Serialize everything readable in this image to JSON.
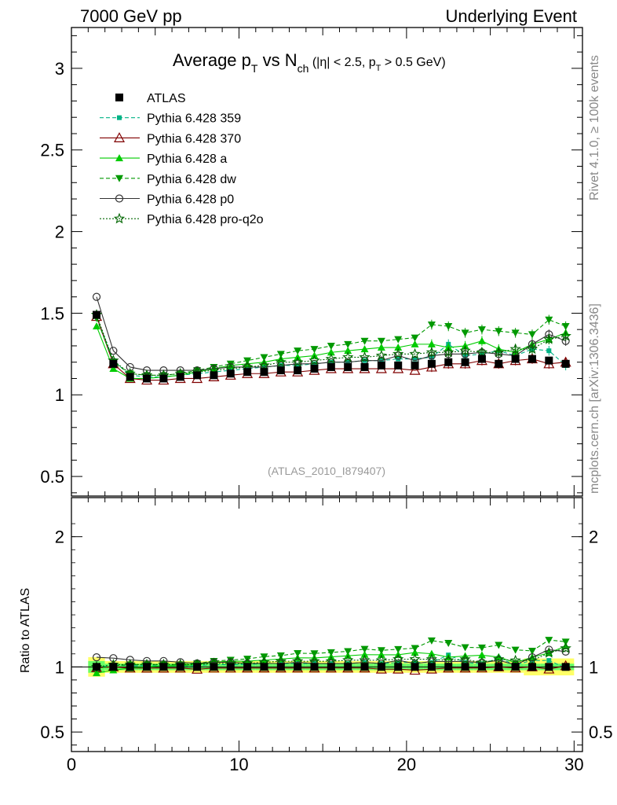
{
  "header": {
    "left": "7000 GeV pp",
    "right": "Underlying Event"
  },
  "title": {
    "prefix": "Average p",
    "sub1": "T",
    "mid": " vs N",
    "sub2": "ch",
    "cut_a": " (|η| < 2.5, p",
    "cut_sub": "T",
    "cut_b": " > 0.5 GeV)"
  },
  "side_labels": {
    "rivet": "Rivet 4.1.0, ≥ 100k events",
    "mcplots": "mcplots.cern.ch [arXiv:1306.3436]"
  },
  "analysis_tag": "(ATLAS_2010_I879407)",
  "ratio_ylabel": "Ratio to ATLAS",
  "colors": {
    "atlas": "#000000",
    "p359": "#00b386",
    "p370": "#800000",
    "pa": "#00cc00",
    "pdw": "#009900",
    "pp0": "#333333",
    "pq2o": "#006600",
    "band_outer": "#ffff66",
    "band_inner": "#66ff66"
  },
  "chart_data": {
    "type": "scatter",
    "x": [
      1.5,
      2.5,
      3.5,
      4.5,
      5.5,
      6.5,
      7.5,
      8.5,
      9.5,
      10.5,
      11.5,
      12.5,
      13.5,
      14.5,
      15.5,
      16.5,
      17.5,
      18.5,
      19.5,
      20.5,
      21.5,
      22.5,
      23.5,
      24.5,
      25.5,
      26.5,
      27.5,
      28.5,
      29.5
    ],
    "xlim": [
      0,
      30.5
    ],
    "xticks": [
      0,
      10,
      20,
      30
    ],
    "main": {
      "ylim": [
        0.38,
        3.25
      ],
      "yticks": [
        0.5,
        1,
        1.5,
        2,
        2.5,
        3
      ],
      "ytick_labels": [
        "0.5",
        "1",
        "1.5",
        "2",
        "2.5",
        "3"
      ]
    },
    "ratio": {
      "ylabel": "Ratio to ATLAS",
      "ylim": [
        0.35,
        2.3
      ],
      "yticks": [
        0.5,
        1,
        2
      ],
      "ytick_labels": [
        "0.5",
        "1",
        "2"
      ]
    },
    "series": [
      {
        "name": "ATLAS",
        "key": "atlas",
        "marker": "square",
        "line": "none",
        "values": [
          1.49,
          1.19,
          1.11,
          1.1,
          1.1,
          1.11,
          1.12,
          1.12,
          1.13,
          1.14,
          1.14,
          1.15,
          1.15,
          1.16,
          1.17,
          1.17,
          1.17,
          1.18,
          1.18,
          1.18,
          1.19,
          1.2,
          1.2,
          1.22,
          1.19,
          1.22,
          1.22,
          1.21,
          1.19
        ]
      },
      {
        "name": "Pythia 6.428 359",
        "key": "p359",
        "marker": "square-small",
        "line": "dashed",
        "values": [
          1.48,
          1.21,
          1.12,
          1.11,
          1.11,
          1.12,
          1.13,
          1.14,
          1.15,
          1.16,
          1.17,
          1.18,
          1.18,
          1.19,
          1.2,
          1.2,
          1.21,
          1.21,
          1.22,
          1.22,
          1.23,
          1.31,
          1.24,
          1.25,
          1.27,
          1.24,
          1.28,
          1.27,
          1.18
        ]
      },
      {
        "name": "Pythia 6.428 370",
        "key": "p370",
        "marker": "triangle-open",
        "line": "solid",
        "values": [
          1.48,
          1.19,
          1.1,
          1.09,
          1.09,
          1.1,
          1.1,
          1.11,
          1.12,
          1.13,
          1.13,
          1.14,
          1.14,
          1.15,
          1.16,
          1.16,
          1.16,
          1.16,
          1.16,
          1.15,
          1.17,
          1.19,
          1.19,
          1.21,
          1.19,
          1.21,
          1.22,
          1.19,
          1.2
        ]
      },
      {
        "name": "Pythia 6.428 a",
        "key": "pa",
        "marker": "triangle-filled",
        "line": "solid",
        "values": [
          1.42,
          1.16,
          1.1,
          1.1,
          1.11,
          1.12,
          1.14,
          1.16,
          1.18,
          1.19,
          1.2,
          1.22,
          1.23,
          1.24,
          1.26,
          1.27,
          1.28,
          1.29,
          1.29,
          1.31,
          1.31,
          1.29,
          1.3,
          1.33,
          1.28,
          1.26,
          1.31,
          1.34,
          1.38
        ]
      },
      {
        "name": "Pythia 6.428 dw",
        "key": "pdw",
        "marker": "triangle-down",
        "line": "dashed",
        "values": [
          1.47,
          1.2,
          1.13,
          1.12,
          1.12,
          1.13,
          1.15,
          1.17,
          1.19,
          1.21,
          1.23,
          1.25,
          1.27,
          1.28,
          1.3,
          1.31,
          1.33,
          1.33,
          1.34,
          1.35,
          1.43,
          1.42,
          1.38,
          1.4,
          1.39,
          1.38,
          1.37,
          1.46,
          1.42
        ]
      },
      {
        "name": "Pythia 6.428 p0",
        "key": "pp0",
        "marker": "circle-open",
        "line": "solid",
        "values": [
          1.6,
          1.27,
          1.17,
          1.15,
          1.15,
          1.15,
          1.15,
          1.16,
          1.17,
          1.17,
          1.17,
          1.18,
          1.19,
          1.19,
          1.2,
          1.2,
          1.21,
          1.21,
          1.24,
          1.21,
          1.24,
          1.25,
          1.25,
          1.26,
          1.25,
          1.24,
          1.31,
          1.37,
          1.33
        ]
      },
      {
        "name": "Pythia 6.428 pro-q2o",
        "key": "pq2o",
        "marker": "star",
        "line": "dotted",
        "values": [
          1.49,
          1.21,
          1.13,
          1.12,
          1.12,
          1.13,
          1.14,
          1.15,
          1.16,
          1.17,
          1.18,
          1.2,
          1.2,
          1.21,
          1.22,
          1.23,
          1.23,
          1.24,
          1.25,
          1.25,
          1.26,
          1.26,
          1.27,
          1.26,
          1.26,
          1.28,
          1.28,
          1.34,
          1.36
        ]
      }
    ]
  }
}
